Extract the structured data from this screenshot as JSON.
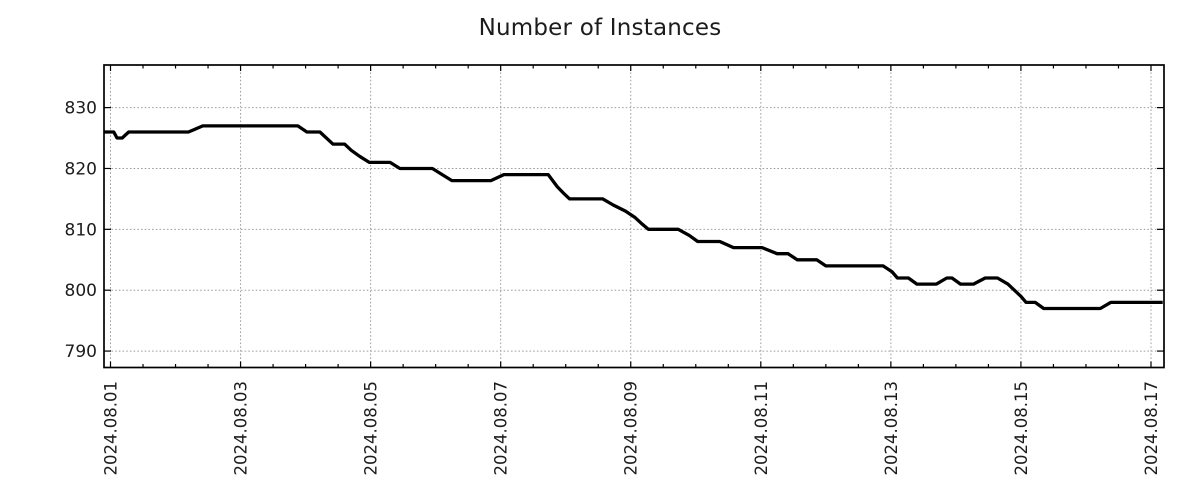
{
  "chart_data": {
    "type": "line",
    "title": "Number of Instances",
    "x_unit": "days since 2024.08.01 00:00",
    "xlim": [
      -0.1,
      16.2
    ],
    "ylim": [
      787.3,
      837.0
    ],
    "yticks": [
      790,
      800,
      810,
      820,
      830
    ],
    "xticks": [
      {
        "day": 0,
        "label": "2024.08.01"
      },
      {
        "day": 2,
        "label": "2024.08.03"
      },
      {
        "day": 4,
        "label": "2024.08.05"
      },
      {
        "day": 6,
        "label": "2024.08.07"
      },
      {
        "day": 8,
        "label": "2024.08.09"
      },
      {
        "day": 10,
        "label": "2024.08.11"
      },
      {
        "day": 12,
        "label": "2024.08.13"
      },
      {
        "day": 14,
        "label": "2024.08.15"
      },
      {
        "day": 16,
        "label": "2024.08.17"
      }
    ],
    "minor_xtick_step": 0.5,
    "grid": "dotted",
    "legend": "none",
    "colors": {
      "line": "#000000",
      "grid": "#9e9e9e",
      "axis": "#000000",
      "text": "#1c1c1c",
      "background": "#ffffff"
    },
    "series": [
      {
        "name": "instances",
        "points": [
          [
            -0.1,
            826
          ],
          [
            0.05,
            826
          ],
          [
            0.1,
            825
          ],
          [
            0.18,
            825
          ],
          [
            0.28,
            826
          ],
          [
            1.2,
            826
          ],
          [
            1.42,
            827
          ],
          [
            2.88,
            827
          ],
          [
            3.02,
            826
          ],
          [
            3.22,
            826
          ],
          [
            3.42,
            824
          ],
          [
            3.6,
            824
          ],
          [
            3.7,
            823
          ],
          [
            3.83,
            822
          ],
          [
            3.98,
            821
          ],
          [
            4.3,
            821
          ],
          [
            4.45,
            820
          ],
          [
            4.95,
            820
          ],
          [
            5.1,
            819
          ],
          [
            5.25,
            818
          ],
          [
            5.85,
            818
          ],
          [
            6.05,
            819
          ],
          [
            6.73,
            819
          ],
          [
            6.87,
            817
          ],
          [
            6.96,
            816
          ],
          [
            7.06,
            815
          ],
          [
            7.57,
            815
          ],
          [
            7.73,
            814
          ],
          [
            7.92,
            813
          ],
          [
            8.06,
            812
          ],
          [
            8.16,
            811
          ],
          [
            8.27,
            810
          ],
          [
            8.73,
            810
          ],
          [
            8.9,
            809
          ],
          [
            9.03,
            808
          ],
          [
            9.37,
            808
          ],
          [
            9.58,
            807
          ],
          [
            10.02,
            807
          ],
          [
            10.25,
            806
          ],
          [
            10.42,
            806
          ],
          [
            10.56,
            805
          ],
          [
            10.86,
            805
          ],
          [
            11.0,
            804
          ],
          [
            11.88,
            804
          ],
          [
            12.02,
            803
          ],
          [
            12.1,
            802
          ],
          [
            12.27,
            802
          ],
          [
            12.4,
            801
          ],
          [
            12.7,
            801
          ],
          [
            12.86,
            802
          ],
          [
            12.94,
            802
          ],
          [
            13.07,
            801
          ],
          [
            13.27,
            801
          ],
          [
            13.45,
            802
          ],
          [
            13.64,
            802
          ],
          [
            13.8,
            801
          ],
          [
            13.9,
            800
          ],
          [
            14.0,
            799
          ],
          [
            14.08,
            798
          ],
          [
            14.22,
            798
          ],
          [
            14.35,
            797
          ],
          [
            15.22,
            797
          ],
          [
            15.38,
            798
          ],
          [
            16.18,
            798
          ]
        ]
      }
    ]
  }
}
